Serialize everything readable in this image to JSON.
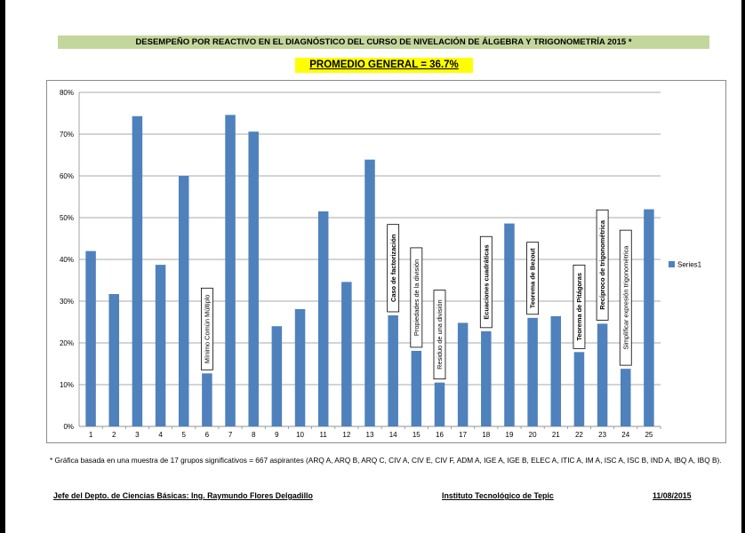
{
  "title": "DESEMPEÑO POR REACTIVO EN EL DIAGNÓSTICO DEL CURSO DE NIVELACIÓN DE ÁLGEBRA Y TRIGONOMETRÍA 2015 *",
  "average": "PROMEDIO GENERAL = 36.7%",
  "colors": {
    "bar": "#4f81bd",
    "title_band": "#c3d69b",
    "average_band": "#ffff00"
  },
  "chart_data": {
    "type": "bar",
    "categories": [
      "1",
      "2",
      "3",
      "4",
      "5",
      "6",
      "7",
      "8",
      "9",
      "10",
      "11",
      "12",
      "13",
      "14",
      "15",
      "16",
      "17",
      "18",
      "19",
      "20",
      "21",
      "22",
      "23",
      "24",
      "25"
    ],
    "series": [
      {
        "name": "Series1",
        "values": [
          42,
          31.7,
          74.3,
          38.7,
          60,
          12.7,
          74.6,
          70.6,
          24,
          28.1,
          51.5,
          34.6,
          63.9,
          26.6,
          18.1,
          10.5,
          24.8,
          22.8,
          48.6,
          26,
          26.4,
          17.8,
          24.6,
          13.8,
          52
        ]
      }
    ],
    "ylim": [
      0,
      80
    ],
    "yticks": [
      0,
      10,
      20,
      30,
      40,
      50,
      60,
      70,
      80
    ],
    "ytick_format": "%",
    "grid": true,
    "legend": {
      "position": "right",
      "entries": [
        "Series1"
      ]
    },
    "annotations": [
      {
        "category": "6",
        "text": "Mínimo Común Múltiplo",
        "bold": false
      },
      {
        "category": "14",
        "text": "Caso de factorización",
        "bold": true
      },
      {
        "category": "15",
        "text": "Propiedades de la división",
        "bold": false
      },
      {
        "category": "16",
        "text": "Residuo de una división",
        "bold": false
      },
      {
        "category": "18",
        "text": "Ecuaciones cuadráticas",
        "bold": true
      },
      {
        "category": "20",
        "text": "Teorema de Bezout",
        "bold": true
      },
      {
        "category": "22",
        "text": "Teorema de Pitágoras",
        "bold": true
      },
      {
        "category": "23",
        "text": "Recíproco de trigonométrica",
        "bold": true
      },
      {
        "category": "24",
        "text": "Simplificar expresión trigonométrica",
        "bold": false
      }
    ]
  },
  "footnote": "* Gráfica basada en una muestra de 17 grupos significativos = 667 aspirantes (ARQ A, ARQ B, ARQ C, CIV A, CIV E, CIV F, ADM A, IGE A, IGE B, ELEC A, ITIC A, IM  A, ISC A, ISC B, IND A, IBQ A, IBQ B).",
  "footer": {
    "department": "Jefe del Depto.  de Ciencias Básicas: Ing.  Raymundo Flores Delgadillo",
    "institute": "Instituto Tecnológico de Tepic",
    "date": "11/08/2015"
  }
}
